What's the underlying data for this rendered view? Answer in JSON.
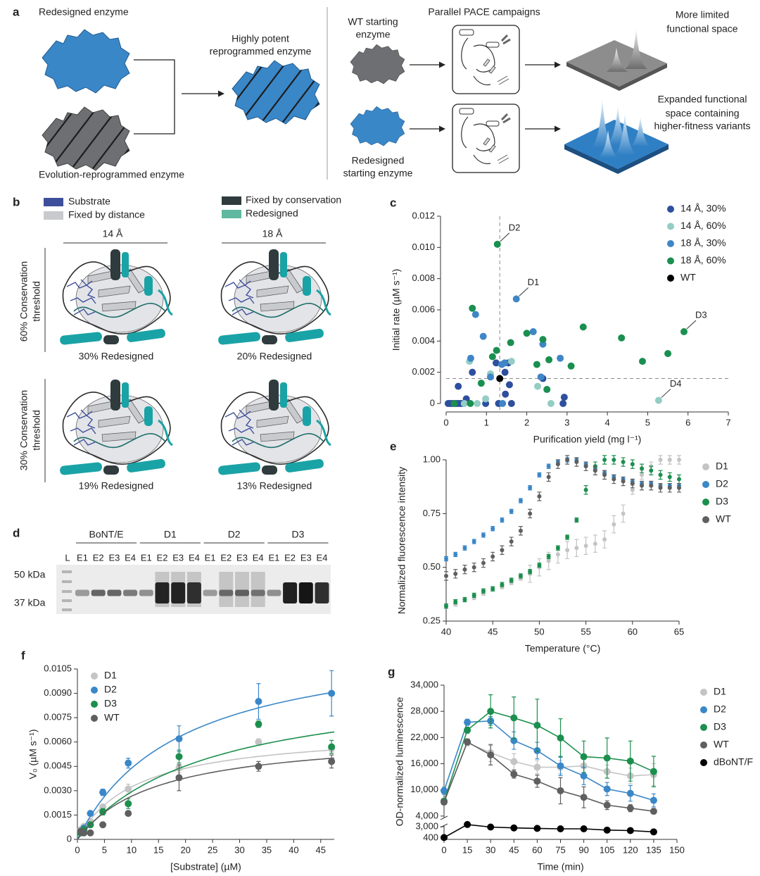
{
  "panel_a": {
    "label": "a",
    "left": {
      "top_enzyme": "Redesigned enzyme",
      "bottom_enzyme": "Evolution-reprogrammed enzyme",
      "result": [
        "Highly potent",
        "reprogrammed enzyme"
      ]
    },
    "right": {
      "title": "Parallel PACE campaigns",
      "top_start": [
        "WT starting",
        "enzyme"
      ],
      "bottom_start": [
        "Redesigned",
        "starting enzyme"
      ],
      "top_result": [
        "More limited",
        "functional space"
      ],
      "bottom_result": [
        "Expanded functional",
        "space containing",
        "higher-fitness variants"
      ]
    }
  },
  "panel_b": {
    "label": "b",
    "legend": [
      "Substrate",
      "Fixed by distance",
      "Fixed by conservation",
      "Redesigned"
    ],
    "columns": [
      "14 Å",
      "18 Å"
    ],
    "rows": [
      [
        "60% Conservation",
        "threshold"
      ],
      [
        "30% Conservation",
        "threshold"
      ]
    ],
    "captions": [
      [
        "30% Redesigned",
        "20% Redesigned"
      ],
      [
        "19% Redesigned",
        "13% Redesigned"
      ]
    ]
  },
  "panel_d": {
    "label": "d",
    "groups": [
      "BoNT/E",
      "D1",
      "D2",
      "D3"
    ],
    "lanes": [
      "L",
      "E1",
      "E2",
      "E3",
      "E4",
      "E1",
      "E2",
      "E3",
      "E4",
      "E1",
      "E2",
      "E3",
      "E4",
      "E1",
      "E2",
      "E3",
      "E4"
    ],
    "markers": [
      "50 kDa",
      "37 kDa"
    ]
  },
  "chart_data": [
    {
      "label": "c",
      "type": "scatter",
      "xlabel": "Purification yield (mg l⁻¹)",
      "ylabel": "Initial rate (µM s⁻¹)",
      "xlim": [
        0,
        7
      ],
      "ylim": [
        0,
        0.012
      ],
      "xticks": [
        0,
        1,
        2,
        3,
        4,
        5,
        6,
        7
      ],
      "yticks": [
        0,
        0.002,
        0.004,
        0.006,
        0.008,
        {
          "value": 0.01,
          "label": "0.010"
        },
        0.012
      ],
      "legend": "upper right",
      "reference_lines": {
        "x": 1.33,
        "y": 0.0016
      },
      "series": [
        {
          "name": "14 Å, 30%",
          "color": "#2d4f9e",
          "x": [
            0.05,
            0.1,
            0.15,
            0.2,
            0.25,
            0.3,
            0.35,
            0.4,
            0.3,
            0.65,
            1.24,
            1.54,
            1.46,
            2.4,
            1.57,
            1.47,
            1.62,
            2.93,
            2.9,
            0.5,
            0.98,
            1.3
          ],
          "values": [
            0,
            0,
            0,
            0,
            0,
            0,
            0,
            0,
            0.0011,
            0.002,
            0.0026,
            0.0026,
            0.002,
            0.0016,
            0.0012,
            0.0006,
            0,
            0.0004,
            0,
            0.0003,
            0,
            0
          ]
        },
        {
          "name": "14 Å, 60%",
          "color": "#93cdc4",
          "x": [
            0.58,
            1.1,
            1.62,
            2.27,
            2.6,
            5.27,
            0.77,
            0.45,
            0.98
          ],
          "values": [
            0.0027,
            0.0019,
            0.0027,
            0.0011,
            0,
            0.0002,
            0,
            0,
            0.0003
          ]
        },
        {
          "name": "18 Å, 30%",
          "color": "#3f86c6",
          "x": [
            1.74,
            0.73,
            0.92,
            2.16,
            2.4,
            2.83,
            1.45,
            0.61,
            1.1,
            2.35,
            1.38,
            1.4
          ],
          "values": [
            0.0067,
            0.0057,
            0.0043,
            0.0046,
            0.0038,
            0.0029,
            0.0026,
            0.0029,
            0.0017,
            0.0017,
            0.0025,
            0
          ]
        },
        {
          "name": "18 Å, 60%",
          "color": "#1a8f4f",
          "x": [
            1.27,
            0.65,
            3.4,
            4.35,
            4.87,
            5.5,
            5.9,
            2.0,
            2.4,
            2.25,
            2.55,
            3.1,
            1.25,
            2.5,
            0.87,
            1.15,
            1.6,
            0.6,
            0.2
          ],
          "values": [
            0.0102,
            0.0061,
            0.0049,
            0.0042,
            0.0027,
            0.0032,
            0.0046,
            0.0045,
            0.0041,
            0.0025,
            0.0028,
            0.0024,
            0.0034,
            0.0009,
            0.0013,
            0.003,
            0.0039,
            0,
            0
          ]
        },
        {
          "name": "WT",
          "color": "#000000",
          "x": [
            1.33
          ],
          "values": [
            0.0016
          ]
        }
      ],
      "annotations": [
        {
          "text": "D2",
          "x": 1.27,
          "y": 0.0102
        },
        {
          "text": "D1",
          "x": 1.74,
          "y": 0.0067
        },
        {
          "text": "D3",
          "x": 5.9,
          "y": 0.0046
        },
        {
          "text": "D4",
          "x": 5.27,
          "y": 0.0002
        }
      ]
    },
    {
      "label": "e",
      "type": "scatter",
      "xlabel": "Temperature (°C)",
      "ylabel": "Normalized fluorescence intensity",
      "xlim": [
        40,
        65
      ],
      "ylim": [
        0.25,
        1.0
      ],
      "xticks": [
        40,
        45,
        50,
        55,
        60,
        65
      ],
      "yticks": [
        0.25,
        {
          "value": 0.5,
          "label": "0.50"
        },
        0.75,
        {
          "value": 1.0,
          "label": "1.00"
        }
      ],
      "legend": "right",
      "x": [
        40,
        41,
        42,
        43,
        44,
        45,
        46,
        47,
        48,
        49,
        50,
        51,
        52,
        53,
        54,
        55,
        56,
        57,
        58,
        59,
        60,
        61,
        62,
        63,
        64,
        65
      ],
      "series": [
        {
          "name": "D1",
          "color": "#c4c4c4",
          "values": [
            0.32,
            0.33,
            0.35,
            0.36,
            0.38,
            0.4,
            0.41,
            0.43,
            0.45,
            0.47,
            0.5,
            0.53,
            0.56,
            0.58,
            0.59,
            0.6,
            0.61,
            0.63,
            0.7,
            0.75,
            0.86,
            0.93,
            0.97,
            1.0,
            1.0,
            1.0
          ],
          "errors": [
            0.01,
            0.01,
            0.01,
            0.01,
            0.01,
            0.01,
            0.01,
            0.01,
            0.01,
            0.04,
            0.04,
            0.04,
            0.04,
            0.04,
            0.04,
            0.04,
            0.04,
            0.04,
            0.04,
            0.04,
            0.02,
            0.02,
            0.02,
            0.02,
            0.02,
            0.02
          ]
        },
        {
          "name": "D2",
          "color": "#3a87c8",
          "values": [
            0.54,
            0.56,
            0.59,
            0.62,
            0.65,
            0.68,
            0.72,
            0.76,
            0.81,
            0.87,
            0.93,
            0.97,
            0.99,
            1.0,
            1.0,
            0.98,
            0.96,
            0.94,
            0.92,
            0.91,
            0.9,
            0.89,
            0.89,
            0.88,
            0.88,
            0.88
          ],
          "errors": [
            0.01,
            0.01,
            0.01,
            0.01,
            0.01,
            0.01,
            0.01,
            0.01,
            0.01,
            0.01,
            0.01,
            0.01,
            0.01,
            0.01,
            0.01,
            0.01,
            0.01,
            0.01,
            0.01,
            0.01,
            0.01,
            0.01,
            0.01,
            0.01,
            0.01,
            0.01
          ]
        },
        {
          "name": "D3",
          "color": "#1c8f4e",
          "values": [
            0.32,
            0.34,
            0.35,
            0.37,
            0.39,
            0.4,
            0.42,
            0.44,
            0.46,
            0.48,
            0.51,
            0.55,
            0.59,
            0.64,
            0.72,
            0.86,
            0.97,
            1.0,
            1.0,
            0.99,
            0.98,
            0.96,
            0.95,
            0.93,
            0.92,
            0.91
          ],
          "errors": [
            0.01,
            0.01,
            0.01,
            0.01,
            0.01,
            0.01,
            0.01,
            0.01,
            0.01,
            0.01,
            0.01,
            0.01,
            0.01,
            0.01,
            0.01,
            0.02,
            0.02,
            0.02,
            0.02,
            0.02,
            0.02,
            0.02,
            0.02,
            0.02,
            0.02,
            0.02
          ]
        },
        {
          "name": "WT",
          "color": "#5f5f60",
          "values": [
            0.46,
            0.47,
            0.49,
            0.5,
            0.52,
            0.55,
            0.58,
            0.62,
            0.67,
            0.75,
            0.83,
            0.92,
            0.98,
            1.0,
            0.99,
            0.97,
            0.95,
            0.93,
            0.91,
            0.9,
            0.89,
            0.88,
            0.88,
            0.87,
            0.87,
            0.87
          ],
          "errors": [
            0.02,
            0.02,
            0.02,
            0.02,
            0.02,
            0.02,
            0.02,
            0.02,
            0.02,
            0.02,
            0.02,
            0.02,
            0.02,
            0.02,
            0.02,
            0.02,
            0.02,
            0.02,
            0.02,
            0.02,
            0.02,
            0.02,
            0.02,
            0.02,
            0.02,
            0.02
          ]
        }
      ]
    },
    {
      "label": "f",
      "type": "scatter",
      "xlabel": "[Substrate] (µM)",
      "ylabel": "V₀ (µM s⁻¹)",
      "xlim": [
        0,
        47.5
      ],
      "ylim": [
        0,
        0.0105
      ],
      "xticks": [
        0,
        5,
        10,
        15,
        20,
        25,
        30,
        35,
        40,
        45
      ],
      "yticks": [
        0,
        0.0015,
        {
          "value": 0.003,
          "label": "0.0030"
        },
        0.0045,
        {
          "value": 0.006,
          "label": "0.0060"
        },
        0.0075,
        {
          "value": 0.009,
          "label": "0.0090"
        },
        0.0105
      ],
      "legend": "upper left",
      "x": [
        0.6,
        1.2,
        2.4,
        4.7,
        9.4,
        18.8,
        33.5,
        47
      ],
      "series": [
        {
          "name": "D1",
          "color": "#c4c4c4",
          "values": [
            0.0006,
            0.0008,
            0.0011,
            0.002,
            0.0031,
            0.0044,
            0.006,
            0.0056
          ],
          "errors": [
            0.0001,
            0.0001,
            0.0001,
            0.0001,
            0.0003,
            0.0003,
            0.0002,
            0.0002
          ],
          "fit": {
            "vmax": 0.00679,
            "km": 11
          }
        },
        {
          "name": "D2",
          "color": "#3a87c8",
          "values": [
            0.0005,
            0.0007,
            0.0016,
            0.0029,
            0.0047,
            0.0062,
            0.0085,
            0.009
          ],
          "errors": [
            0.0001,
            0.0001,
            0.0001,
            0.0002,
            0.0003,
            0.0008,
            0.0011,
            0.0014
          ],
          "fit": {
            "vmax": 0.0127,
            "km": 19
          }
        },
        {
          "name": "D3",
          "color": "#1c8f4e",
          "values": [
            0.0004,
            0.0006,
            0.0009,
            0.0017,
            0.0022,
            0.0051,
            0.0071,
            0.0057
          ],
          "errors": [
            0.0001,
            0.0001,
            0.0001,
            0.0002,
            0.0003,
            0.0004,
            0.0002,
            0.0004
          ],
          "fit": {
            "vmax": 0.00998,
            "km": 24.1
          }
        },
        {
          "name": "WT",
          "color": "#5f5f60",
          "values": [
            0.0005,
            0.0004,
            0.0004,
            0.0009,
            0.0016,
            0.0038,
            0.0045,
            0.0048
          ],
          "errors": [
            0.0001,
            0.0001,
            0.0001,
            0.0001,
            0.0001,
            0.0008,
            0.0003,
            0.0004
          ],
          "fit": {
            "vmax": 0.00656,
            "km": 14.7
          }
        }
      ]
    },
    {
      "label": "g",
      "type": "line",
      "xlabel": "Time (min)",
      "ylabel": "OD-normalized luminescence",
      "xlim": [
        0,
        150
      ],
      "ylim": [
        400,
        34000
      ],
      "axis_break": [
        3000,
        4000
      ],
      "xticks": [
        0,
        15,
        30,
        45,
        60,
        75,
        90,
        105,
        120,
        135,
        150
      ],
      "yticks": [
        400,
        {
          "value": 3000,
          "label": "3,000"
        },
        {
          "value": 4000,
          "label": "4,000"
        },
        {
          "value": 10000,
          "label": "10,000"
        },
        {
          "value": 16000,
          "label": "16,000"
        },
        {
          "value": 22000,
          "label": "22,000"
        },
        {
          "value": 28000,
          "label": "28,000"
        },
        {
          "value": 34000,
          "label": "34,000"
        }
      ],
      "legend": "right",
      "x": [
        0,
        15,
        30,
        45,
        60,
        75,
        90,
        105,
        120,
        135
      ],
      "series": [
        {
          "name": "D1",
          "color": "#c4c4c4",
          "values": [
            7500,
            20800,
            18500,
            16500,
            15200,
            15200,
            15500,
            14200,
            13200,
            13500
          ],
          "errors": [
            500,
            700,
            2000,
            1800,
            1500,
            1500,
            1500,
            1500,
            1800,
            2500
          ]
        },
        {
          "name": "D2",
          "color": "#3a87c8",
          "values": [
            9800,
            25500,
            25800,
            21300,
            19000,
            15500,
            13200,
            10200,
            9200,
            7600
          ],
          "errors": [
            800,
            700,
            1000,
            2000,
            1900,
            2200,
            2000,
            1500,
            1800,
            1500
          ]
        },
        {
          "name": "D3",
          "color": "#1c8f4e",
          "values": [
            7400,
            23700,
            28000,
            26500,
            24800,
            21900,
            17600,
            17300,
            16600,
            14200
          ],
          "errors": [
            600,
            700,
            3800,
            4800,
            6000,
            4400,
            3600,
            4600,
            4600,
            3500
          ]
        },
        {
          "name": "WT",
          "color": "#5f5f60",
          "values": [
            7200,
            21000,
            18000,
            13600,
            12000,
            9800,
            8300,
            6500,
            5800,
            5100
          ],
          "errors": [
            400,
            700,
            2300,
            900,
            1400,
            3000,
            2400,
            1000,
            800,
            600
          ]
        },
        {
          "name": "dBoNT/F",
          "color": "#000000",
          "values": [
            500,
            3200,
            2900,
            2700,
            2600,
            2500,
            2500,
            2200,
            2100,
            1800
          ],
          "errors": [
            100,
            200,
            150,
            400,
            300,
            300,
            300,
            200,
            200,
            200
          ]
        }
      ]
    }
  ]
}
